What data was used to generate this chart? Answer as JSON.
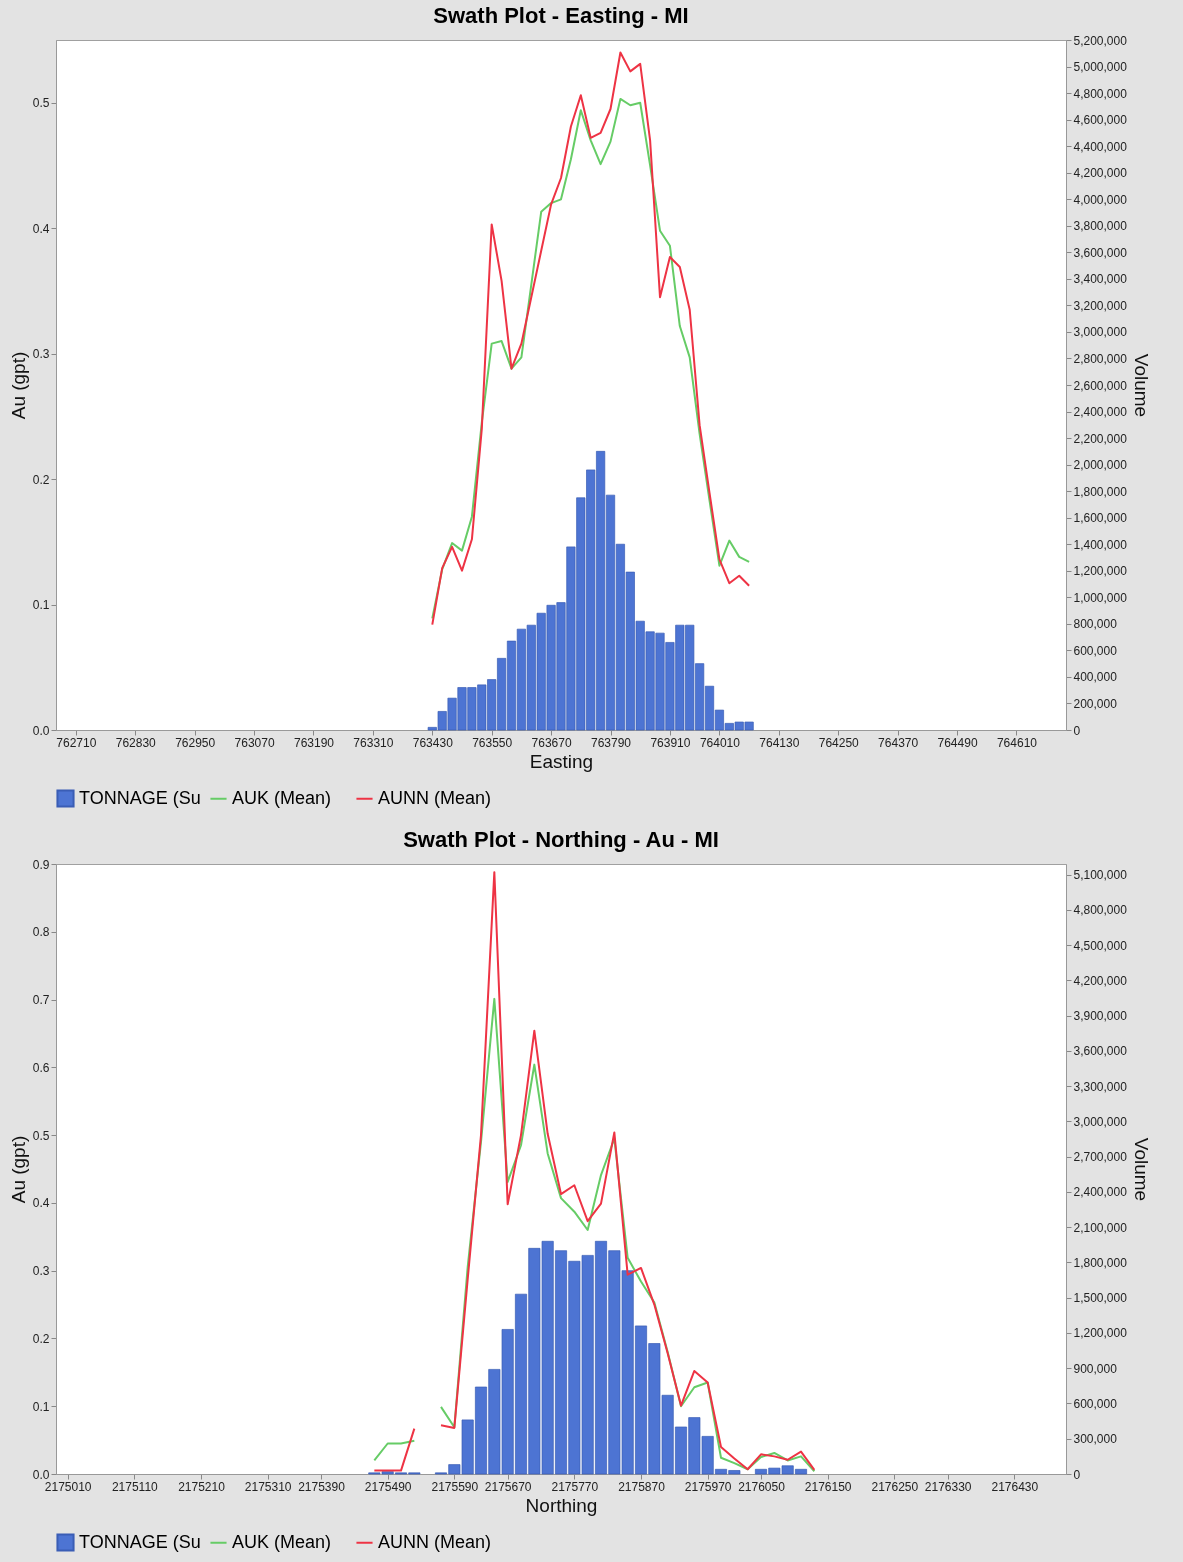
{
  "chart_data": [
    {
      "type": "bar",
      "title": "Swath Plot - Easting - MI",
      "xlabel": "Easting",
      "ylabel": "Au (gpt)",
      "y2label": "Volume",
      "legend": "bottom",
      "xlim": [
        762680,
        764700
      ],
      "xticks": [
        762710,
        762830,
        762950,
        763070,
        763190,
        763310,
        763430,
        763550,
        763670,
        763790,
        763910,
        764010,
        764130,
        764250,
        764370,
        764490,
        764610
      ],
      "ylim": [
        0,
        0.55
      ],
      "yticks": [
        {
          "value": 0,
          "label": "0.0"
        },
        0.1,
        0.2,
        0.3,
        0.4,
        0.5
      ],
      "y2lim": [
        0,
        5200000
      ],
      "y2ticks": [
        {
          "value": 0,
          "label": "0"
        },
        {
          "value": 200000,
          "label": "200,000"
        },
        {
          "value": 400000,
          "label": "400,000"
        },
        {
          "value": 600000,
          "label": "600,000"
        },
        {
          "value": 800000,
          "label": "800,000"
        },
        {
          "value": 1000000,
          "label": "1,000,000"
        },
        {
          "value": 1200000,
          "label": "1,200,000"
        },
        {
          "value": 1400000,
          "label": "1,400,000"
        },
        {
          "value": 1600000,
          "label": "1,600,000"
        },
        {
          "value": 1800000,
          "label": "1,800,000"
        },
        {
          "value": 2000000,
          "label": "2,000,000"
        },
        {
          "value": 2200000,
          "label": "2,200,000"
        },
        {
          "value": 2400000,
          "label": "2,400,000"
        },
        {
          "value": 2600000,
          "label": "2,600,000"
        },
        {
          "value": 2800000,
          "label": "2,800,000"
        },
        {
          "value": 3000000,
          "label": "3,000,000"
        },
        {
          "value": 3200000,
          "label": "3,200,000"
        },
        {
          "value": 3400000,
          "label": "3,400,000"
        },
        {
          "value": 3600000,
          "label": "3,600,000"
        },
        {
          "value": 3800000,
          "label": "3,800,000"
        },
        {
          "value": 4000000,
          "label": "4,000,000"
        },
        {
          "value": 4200000,
          "label": "4,200,000"
        },
        {
          "value": 4400000,
          "label": "4,400,000"
        },
        {
          "value": 4600000,
          "label": "4,600,000"
        },
        {
          "value": 4800000,
          "label": "4,800,000"
        },
        {
          "value": 5000000,
          "label": "5,000,000"
        },
        {
          "value": 5200000,
          "label": "5,200,000"
        }
      ],
      "series": [
        {
          "name": "TONNAGE (Su",
          "axis": "y2",
          "color": "#4d74d3",
          "x": [
            763430,
            763450,
            763470,
            763490,
            763510,
            763530,
            763550,
            763570,
            763590,
            763610,
            763630,
            763650,
            763670,
            763690,
            763710,
            763730,
            763750,
            763770,
            763790,
            763810,
            763830,
            763850,
            763870,
            763890,
            763910,
            763930,
            763950,
            763970,
            763990,
            764010,
            764030,
            764050,
            764070
          ],
          "values": [
            20000,
            140000,
            240000,
            320000,
            320000,
            340000,
            380000,
            540000,
            670000,
            760000,
            790000,
            880000,
            940000,
            960000,
            1380000,
            1750000,
            1960000,
            2100000,
            1770000,
            1400000,
            1190000,
            820000,
            740000,
            730000,
            660000,
            790000,
            790000,
            500000,
            330000,
            150000,
            50000,
            60000,
            60000
          ]
        },
        {
          "name": "AUK (Mean)",
          "type": "line",
          "axis": "y",
          "color": "#66cc66",
          "x": [
            763430,
            763450,
            763470,
            763490,
            763510,
            763530,
            763550,
            763570,
            763590,
            763610,
            763630,
            763650,
            763670,
            763690,
            763710,
            763730,
            763750,
            763770,
            763790,
            763810,
            763830,
            763850,
            763870,
            763890,
            763910,
            763930,
            763950,
            763970,
            763990,
            764010,
            764030,
            764050,
            764070
          ],
          "values": [
            0.089,
            0.128,
            0.149,
            0.143,
            0.17,
            0.245,
            0.308,
            0.31,
            0.288,
            0.297,
            0.355,
            0.413,
            0.42,
            0.423,
            0.455,
            0.494,
            0.47,
            0.451,
            0.469,
            0.503,
            0.498,
            0.5,
            0.45,
            0.398,
            0.386,
            0.322,
            0.297,
            0.236,
            0.183,
            0.131,
            0.151,
            0.138,
            0.134
          ]
        },
        {
          "name": "AUNN (Mean)",
          "type": "line",
          "axis": "y",
          "color": "#ee3344",
          "x": [
            763430,
            763450,
            763470,
            763490,
            763510,
            763530,
            763550,
            763570,
            763590,
            763610,
            763630,
            763650,
            763670,
            763690,
            763710,
            763730,
            763750,
            763770,
            763790,
            763810,
            763830,
            763850,
            763870,
            763890,
            763910,
            763930,
            763950,
            763970,
            763990,
            764010,
            764030,
            764050,
            764070
          ],
          "values": [
            0.084,
            0.129,
            0.146,
            0.127,
            0.152,
            0.24,
            0.403,
            0.358,
            0.288,
            0.308,
            0.345,
            0.382,
            0.419,
            0.44,
            0.481,
            0.506,
            0.472,
            0.476,
            0.495,
            0.54,
            0.525,
            0.531,
            0.47,
            0.345,
            0.377,
            0.369,
            0.335,
            0.243,
            0.189,
            0.136,
            0.117,
            0.123,
            0.115
          ]
        }
      ]
    },
    {
      "type": "bar",
      "title": "Swath Plot - Northing - Au - MI",
      "xlabel": "Northing",
      "ylabel": "Au (gpt)",
      "y2label": "Volume",
      "legend": "bottom",
      "xlim": [
        2175000,
        2176500
      ],
      "xticks": [
        2175010,
        2175110,
        2175210,
        2175310,
        2175390,
        2175490,
        2175590,
        2175670,
        2175770,
        2175870,
        2175970,
        2176050,
        2176150,
        2176250,
        2176330,
        2176430
      ],
      "ylim": [
        0,
        0.9
      ],
      "yticks": [
        {
          "value": 0,
          "label": "0.0"
        },
        0.1,
        0.2,
        0.3,
        0.4,
        0.5,
        0.6,
        0.7,
        0.8,
        0.9
      ],
      "y2lim": [
        0,
        5190000
      ],
      "y2ticks": [
        {
          "value": 0,
          "label": "0"
        },
        {
          "value": 300000,
          "label": "300,000"
        },
        {
          "value": 600000,
          "label": "600,000"
        },
        {
          "value": 900000,
          "label": "900,000"
        },
        {
          "value": 1200000,
          "label": "1,200,000"
        },
        {
          "value": 1500000,
          "label": "1,500,000"
        },
        {
          "value": 1800000,
          "label": "1,800,000"
        },
        {
          "value": 2100000,
          "label": "2,100,000"
        },
        {
          "value": 2400000,
          "label": "2,400,000"
        },
        {
          "value": 2700000,
          "label": "2,700,000"
        },
        {
          "value": 3000000,
          "label": "3,000,000"
        },
        {
          "value": 3300000,
          "label": "3,300,000"
        },
        {
          "value": 3600000,
          "label": "3,600,000"
        },
        {
          "value": 3900000,
          "label": "3,900,000"
        },
        {
          "value": 4200000,
          "label": "4,200,000"
        },
        {
          "value": 4500000,
          "label": "4,500,000"
        },
        {
          "value": 4800000,
          "label": "4,800,000"
        },
        {
          "value": 5100000,
          "label": "5,100,000"
        }
      ],
      "series": [
        {
          "name": "TONNAGE (Su",
          "axis": "y2",
          "color": "#4d74d3",
          "x": [
            2175470,
            2175490,
            2175510,
            2175530,
            2175550,
            2175570,
            2175590,
            2175610,
            2175630,
            2175650,
            2175670,
            2175690,
            2175710,
            2175730,
            2175750,
            2175770,
            2175790,
            2175810,
            2175830,
            2175850,
            2175870,
            2175890,
            2175910,
            2175930,
            2175950,
            2175970,
            2175990,
            2176010,
            2176030,
            2176050,
            2176070,
            2176090,
            2176110
          ],
          "values": [
            10000,
            20000,
            10000,
            10000,
            null,
            10000,
            80000,
            460000,
            740000,
            890000,
            1230000,
            1530000,
            1920000,
            1980000,
            1900000,
            1810000,
            1860000,
            1980000,
            1900000,
            1730000,
            1260000,
            1110000,
            670000,
            400000,
            480000,
            320000,
            40000,
            30000,
            null,
            40000,
            50000,
            70000,
            40000
          ]
        },
        {
          "name": "AUK (Mean)",
          "type": "line",
          "axis": "y",
          "color": "#66cc66",
          "x": [
            2175470,
            2175490,
            2175510,
            2175530,
            2175550,
            2175570,
            2175590,
            2175610,
            2175630,
            2175650,
            2175670,
            2175690,
            2175710,
            2175730,
            2175750,
            2175770,
            2175790,
            2175810,
            2175830,
            2175850,
            2175870,
            2175890,
            2175910,
            2175930,
            2175950,
            2175970,
            2175990,
            2176010,
            2176030,
            2176050,
            2176070,
            2176090,
            2176110,
            2176130
          ],
          "values": [
            0.02,
            0.045,
            0.045,
            0.049,
            null,
            0.099,
            0.069,
            0.305,
            0.49,
            0.701,
            0.431,
            0.485,
            0.604,
            0.473,
            0.407,
            0.387,
            0.36,
            0.441,
            0.495,
            0.319,
            0.284,
            0.253,
            0.18,
            0.1,
            0.128,
            0.135,
            0.024,
            0.016,
            0.007,
            0.025,
            0.031,
            0.02,
            0.026,
            0.004
          ]
        },
        {
          "name": "AUNN (Mean)",
          "type": "line",
          "axis": "y",
          "color": "#ee3344",
          "x": [
            2175470,
            2175490,
            2175510,
            2175530,
            2175550,
            2175570,
            2175590,
            2175610,
            2175630,
            2175650,
            2175670,
            2175690,
            2175710,
            2175730,
            2175750,
            2175770,
            2175790,
            2175810,
            2175830,
            2175850,
            2175870,
            2175890,
            2175910,
            2175930,
            2175950,
            2175970,
            2175990,
            2176010,
            2176030,
            2176050,
            2176070,
            2176090,
            2176110,
            2176130
          ],
          "values": [
            0.005,
            0.005,
            0.005,
            0.067,
            null,
            0.072,
            0.068,
            0.287,
            0.5,
            0.888,
            0.398,
            0.5,
            0.654,
            0.502,
            0.413,
            0.426,
            0.373,
            0.399,
            0.504,
            0.294,
            0.304,
            0.25,
            0.178,
            0.101,
            0.152,
            0.135,
            0.04,
            0.023,
            0.007,
            0.029,
            0.026,
            0.021,
            0.033,
            0.006
          ]
        }
      ]
    }
  ]
}
